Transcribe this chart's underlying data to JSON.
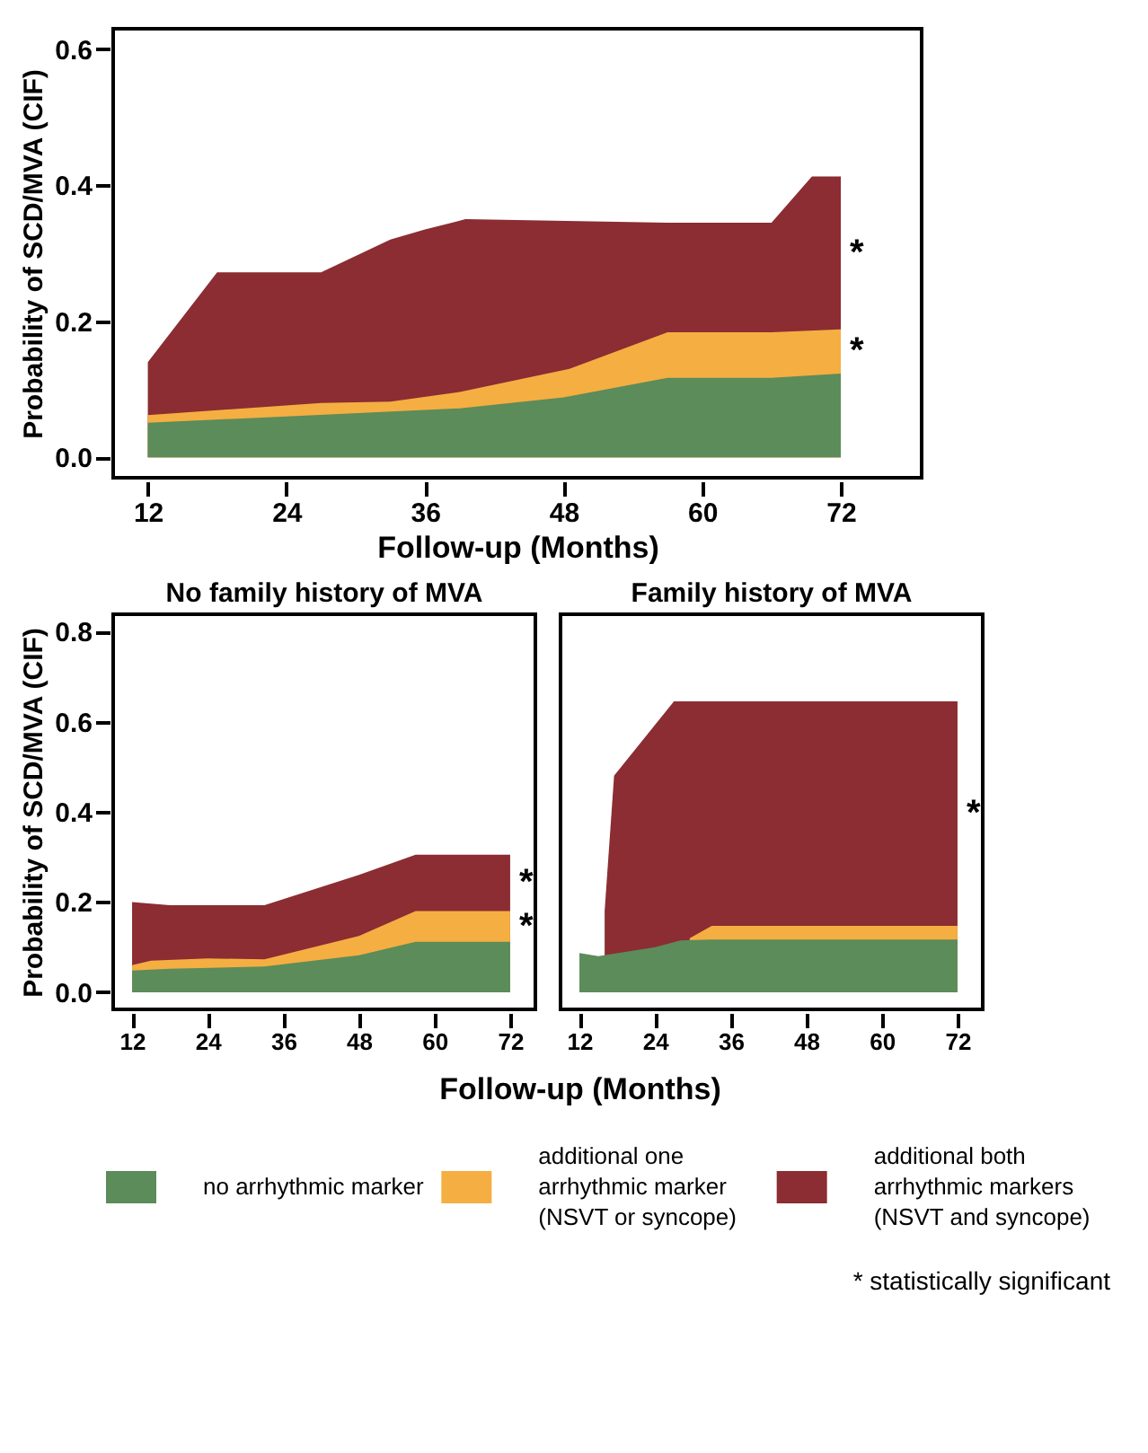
{
  "chart_data": [
    {
      "type": "area",
      "ylabel": "Probability of SCD/MVA (CIF)",
      "xlabel": "Follow-up (Months)",
      "xlim": [
        9,
        79
      ],
      "ylim": [
        -0.03,
        0.63
      ],
      "xticks": [
        12,
        24,
        36,
        48,
        60,
        72
      ],
      "yticks": [
        {
          "value": 0,
          "label": "0.0"
        },
        0.2,
        0.4,
        0.6
      ],
      "grid": false,
      "legend": false,
      "series": [
        {
          "color": "#5b8c5a",
          "x": [
            12,
            24,
            39,
            48,
            57,
            66,
            72
          ],
          "values": [
            0.051,
            0.06,
            0.072,
            0.088,
            0.117,
            0.117,
            0.123
          ]
        },
        {
          "color": "#f5ae42",
          "x": [
            12,
            27,
            33,
            39,
            48.5,
            57,
            66,
            72
          ],
          "values": [
            0.062,
            0.08,
            0.082,
            0.096,
            0.13,
            0.184,
            0.184,
            0.188
          ]
        },
        {
          "color": "#8b2d32",
          "x": [
            12,
            18,
            27,
            33,
            36,
            39.5,
            57,
            66,
            69.5,
            72
          ],
          "values": [
            0.14,
            0.272,
            0.272,
            0.32,
            0.335,
            0.35,
            0.345,
            0.345,
            0.413,
            0.413
          ]
        }
      ],
      "annotations": [
        "*",
        "*"
      ]
    },
    {
      "type": "area",
      "title": "No family history of MVA",
      "ylabel": "Probability of SCD/MVA (CIF)",
      "xlabel": "Follow-up (Months)",
      "xlim": [
        9,
        76
      ],
      "ylim": [
        -0.038,
        0.838
      ],
      "xticks": [
        12,
        24,
        36,
        48,
        60,
        72
      ],
      "yticks": [
        {
          "value": 0,
          "label": "0.0"
        },
        0.2,
        0.4,
        0.6,
        0.8
      ],
      "grid": false,
      "legend": false,
      "series": [
        {
          "color": "#5b8c5a",
          "x": [
            12,
            18,
            33,
            48,
            57,
            72
          ],
          "values": [
            0.048,
            0.052,
            0.057,
            0.082,
            0.112,
            0.112
          ]
        },
        {
          "color": "#f5ae42",
          "x": [
            12,
            15,
            24,
            33,
            48,
            57,
            72
          ],
          "values": [
            0.06,
            0.07,
            0.075,
            0.073,
            0.125,
            0.18,
            0.18
          ]
        },
        {
          "color": "#8b2d32",
          "x": [
            12,
            18,
            33,
            48,
            57,
            72
          ],
          "values": [
            0.2,
            0.193,
            0.193,
            0.26,
            0.305,
            0.305
          ]
        }
      ],
      "annotations": [
        "*",
        "*"
      ]
    },
    {
      "type": "area",
      "title": "Family history of MVA",
      "xlim": [
        9,
        76
      ],
      "ylim": [
        -0.038,
        0.838
      ],
      "xticks": [
        12,
        24,
        36,
        48,
        60,
        72
      ],
      "tick_labels": "x",
      "grid": false,
      "legend": "bottom",
      "series": [
        {
          "name": "no arrhythmic marker",
          "color": "#5b8c5a",
          "x": [
            12,
            15,
            24,
            28,
            33,
            72
          ],
          "values": [
            0.087,
            0.08,
            0.1,
            0.115,
            0.117,
            0.117
          ]
        },
        {
          "name": "additional one arrhythmic marker (NSVT or syncope)",
          "color": "#f5ae42",
          "x": [
            29.5,
            33,
            72
          ],
          "values": [
            0.12,
            0.147,
            0.147
          ]
        },
        {
          "name": "additional both arrhythmic markers (NSVT and syncope)",
          "color": "#8b2d32",
          "x": [
            16,
            17.5,
            27,
            72
          ],
          "values": [
            0.18,
            0.48,
            0.645,
            0.645
          ]
        }
      ],
      "annotations": [
        "*",
        "* statistically significant"
      ]
    }
  ]
}
